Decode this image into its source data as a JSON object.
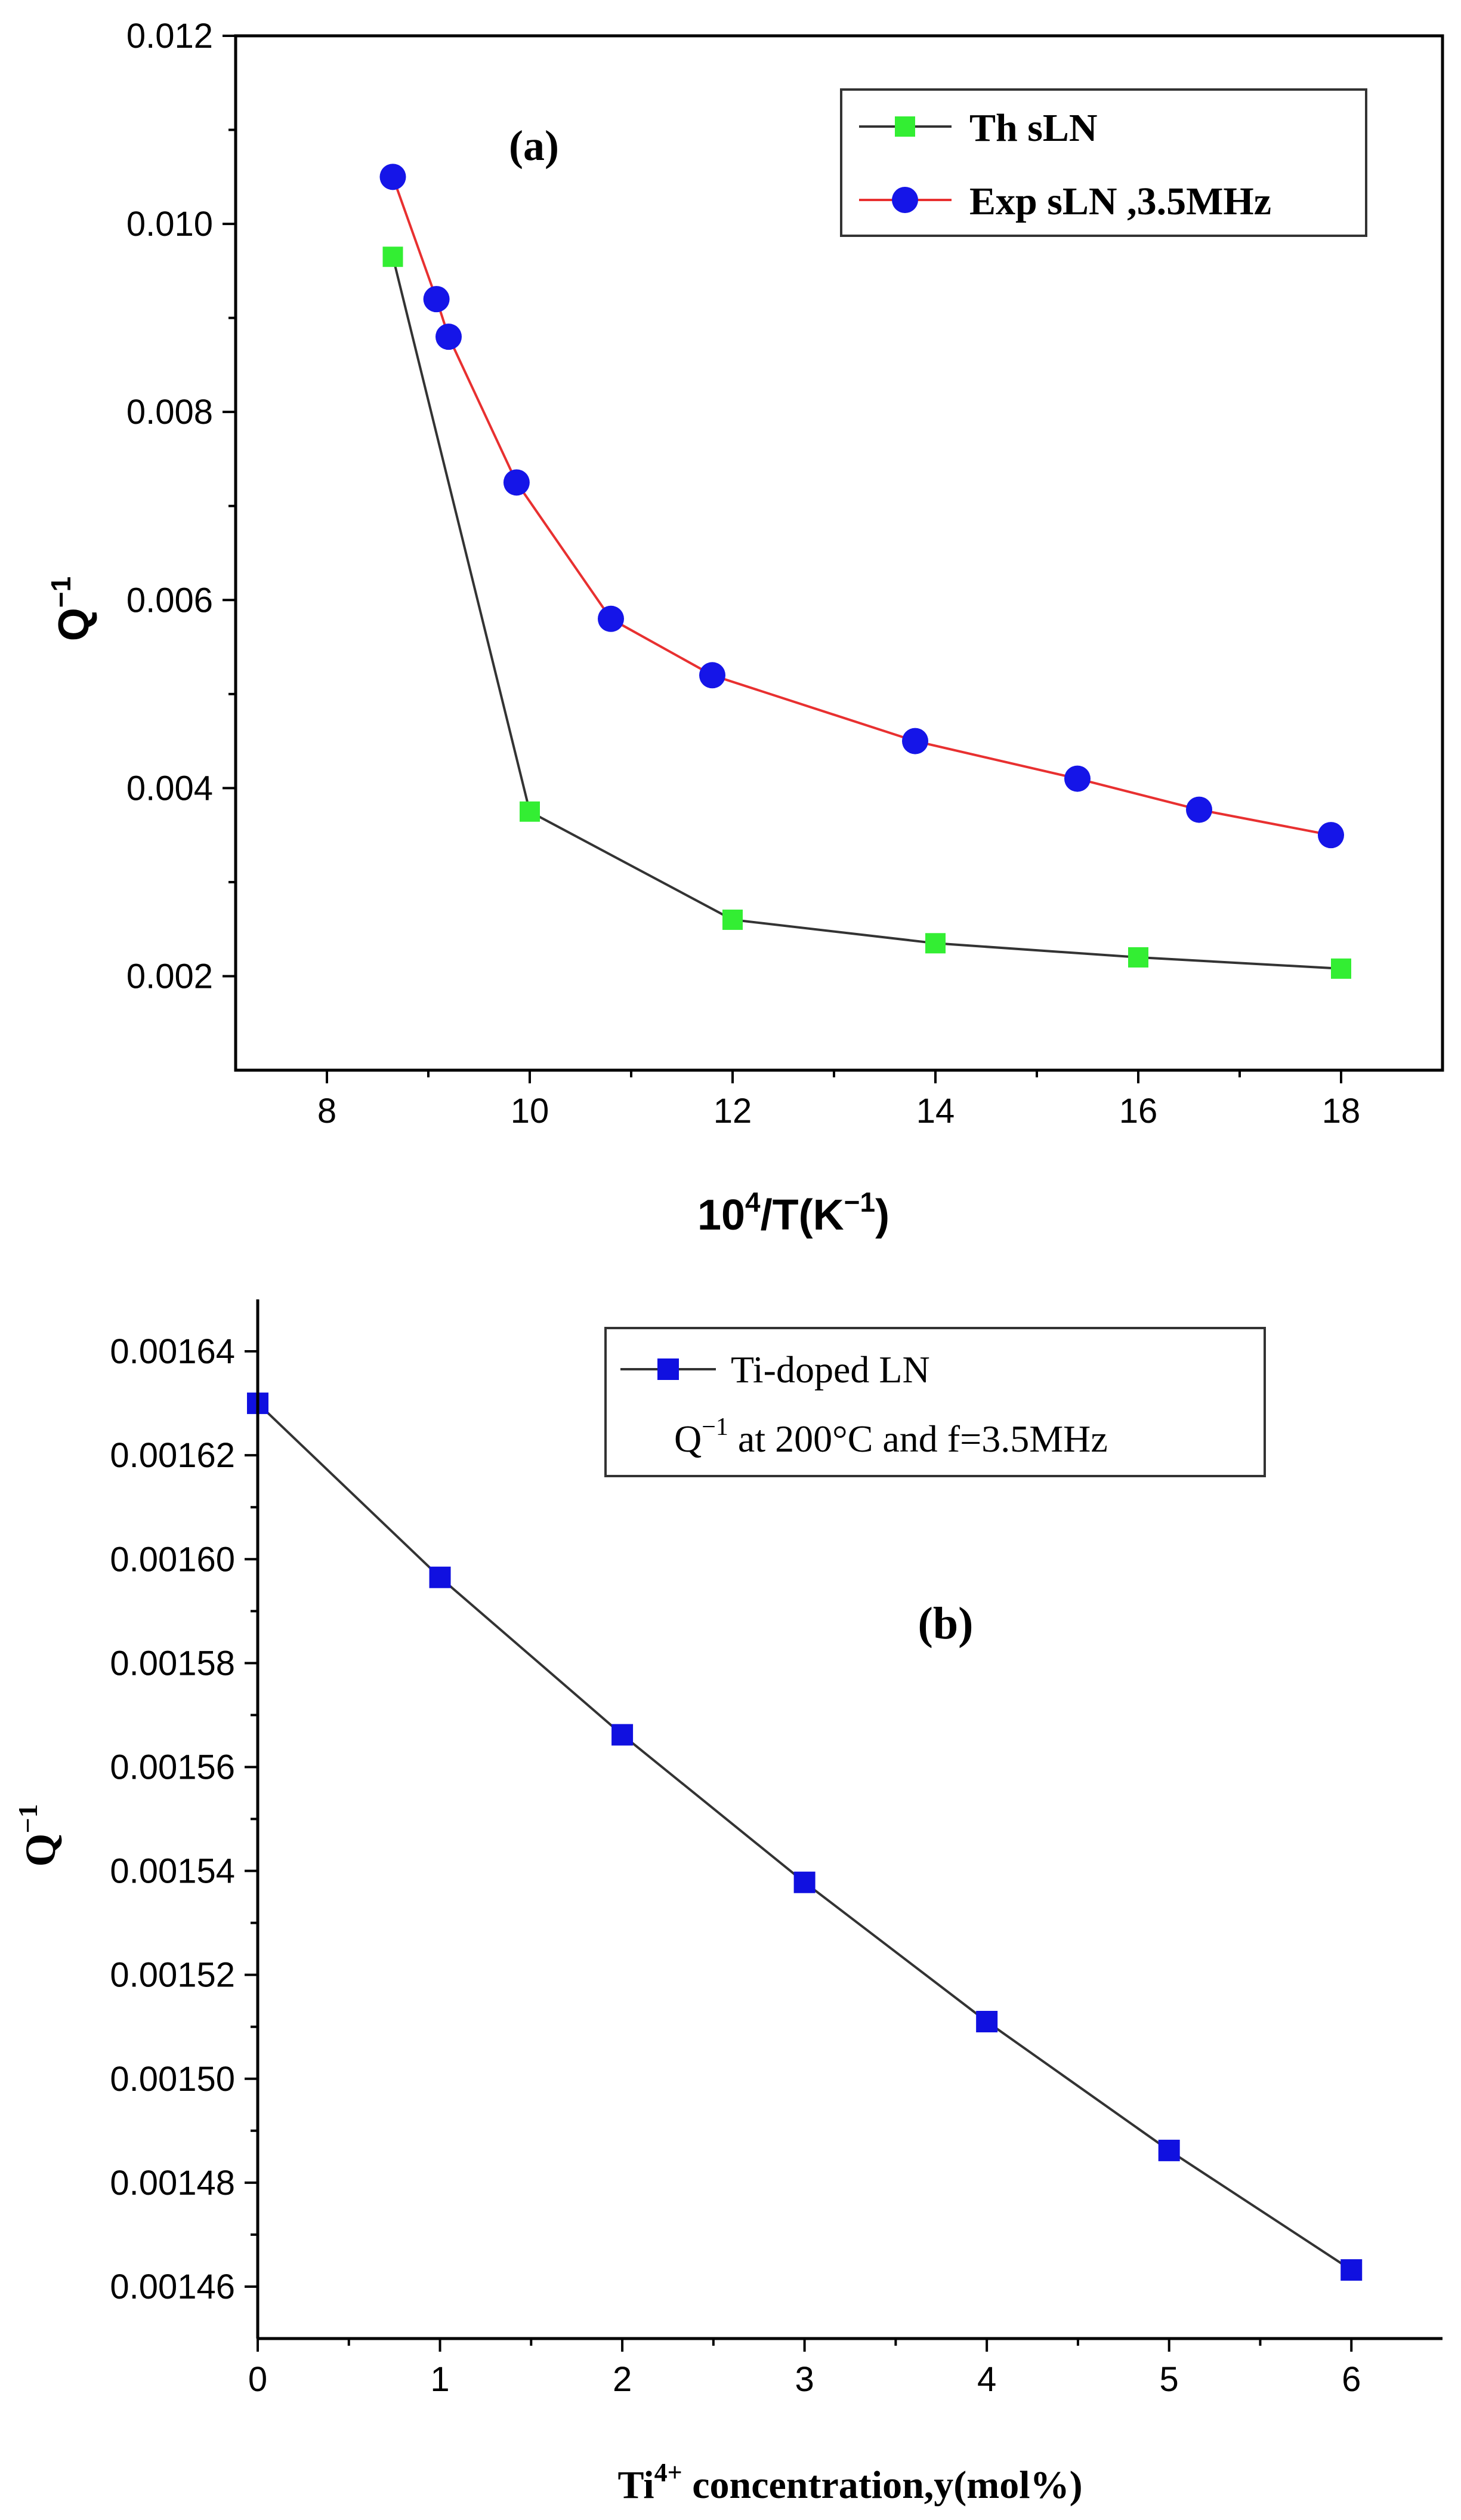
{
  "chart_data": [
    {
      "type": "line",
      "panel_label": "(a)",
      "xlabel_main": "10",
      "xlabel_sup": "4",
      "xlabel_rest1": "/T(K",
      "xlabel_sup2": "−1",
      "xlabel_rest2": ")",
      "ylabel_main": "Q",
      "ylabel_sup": "−1",
      "xlim": [
        7.1,
        19.0
      ],
      "ylim": [
        0.001,
        0.012
      ],
      "xticks": [
        8,
        10,
        12,
        14,
        16,
        18
      ],
      "xtick_labels": [
        "8",
        "10",
        "12",
        "14",
        "16",
        "18"
      ],
      "yticks": [
        0.002,
        0.004,
        0.006,
        0.008,
        0.01,
        0.012
      ],
      "ytick_labels": [
        "0.002",
        "0.004",
        "0.006",
        "0.008",
        "0.010",
        "0.012"
      ],
      "series": [
        {
          "name": "Th sLN",
          "color": "#333333",
          "marker_color": "#33ee33",
          "marker": "square",
          "x": [
            8.65,
            10.0,
            12.0,
            14.0,
            16.0,
            18.0
          ],
          "y": [
            0.00965,
            0.00375,
            0.0026,
            0.00235,
            0.0022,
            0.00208
          ]
        },
        {
          "name": "Exp sLN ,3.5MHz",
          "color": "#e83030",
          "marker_color": "#1515e8",
          "marker": "circle",
          "x": [
            8.65,
            9.08,
            9.2,
            9.87,
            10.8,
            11.8,
            13.8,
            15.4,
            16.6,
            17.9
          ],
          "y": [
            0.0105,
            0.0092,
            0.0088,
            0.00725,
            0.0058,
            0.0052,
            0.0045,
            0.0041,
            0.00377,
            0.0035
          ]
        }
      ]
    },
    {
      "type": "line",
      "panel_label": "(b)",
      "xlabel_pre": "Ti",
      "xlabel_sup": "4+",
      "xlabel_post": " concentration,y(mol%)",
      "ylabel_main": "Q",
      "ylabel_sup": "−1",
      "xlim": [
        0,
        6.5
      ],
      "ylim": [
        0.00145,
        0.00165
      ],
      "xticks": [
        0,
        1,
        2,
        3,
        4,
        5,
        6
      ],
      "xtick_labels": [
        "0",
        "1",
        "2",
        "3",
        "4",
        "5",
        "6"
      ],
      "yticks": [
        0.00146,
        0.00148,
        0.0015,
        0.00152,
        0.00154,
        0.00156,
        0.00158,
        0.0016,
        0.00162,
        0.00164
      ],
      "ytick_labels": [
        "0.00146",
        "0.00148",
        "0.00150",
        "0.00152",
        "0.00154",
        "0.00156",
        "0.00158",
        "0.00160",
        "0.00162",
        "0.00164"
      ],
      "legend_line2_pre": "Q",
      "legend_line2_sup": "−1",
      "legend_line2_post": " at 200°C and f=3.5MHz",
      "series": [
        {
          "name": "Ti-doped LN",
          "color": "#333333",
          "marker_color": "#1010e0",
          "marker": "square",
          "x": [
            0,
            1,
            2,
            3,
            4,
            5,
            6
          ],
          "y": [
            0.00163,
            0.0015965,
            0.0015662,
            0.0015378,
            0.001511,
            0.0014862,
            0.0014632
          ]
        }
      ]
    }
  ]
}
